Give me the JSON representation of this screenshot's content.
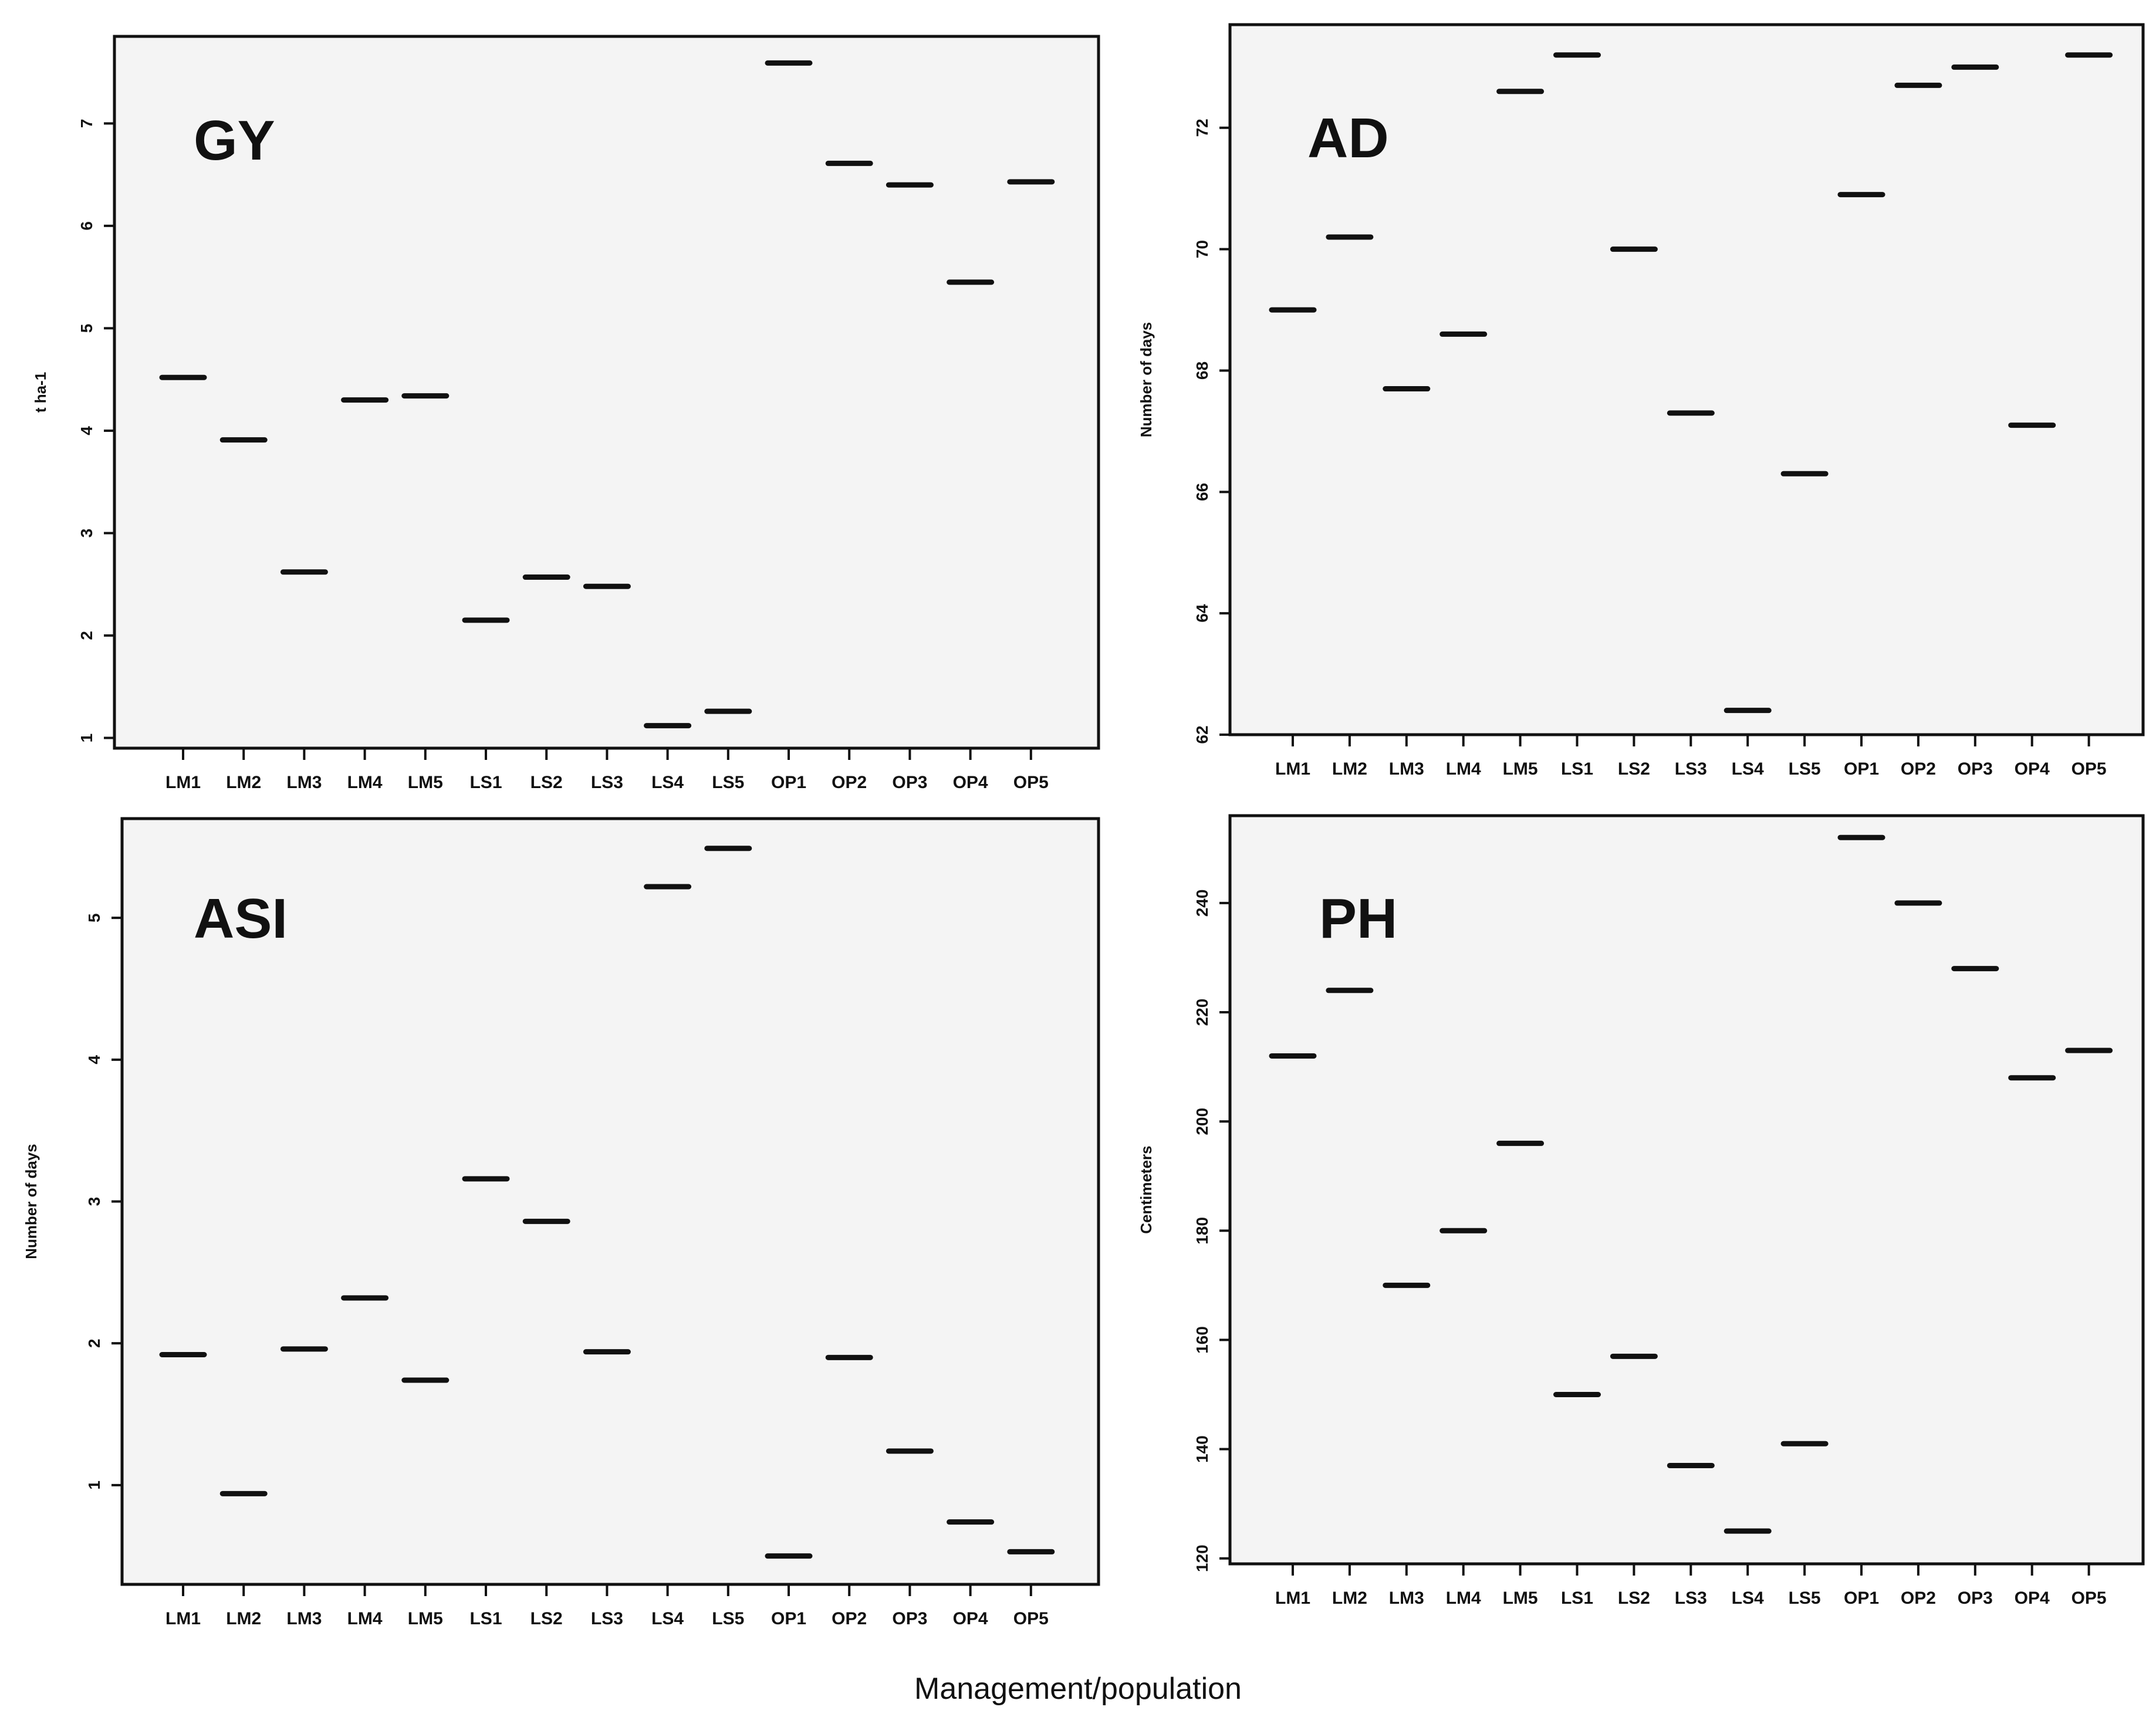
{
  "xlabel": "Management/population",
  "chart_data": [
    {
      "type": "scatter",
      "title": "GY",
      "ylabel": "t ha-1",
      "categories": [
        "LM1",
        "LM2",
        "LM3",
        "LM4",
        "LM5",
        "LS1",
        "LS2",
        "LS3",
        "LS4",
        "LS5",
        "OP1",
        "OP2",
        "OP3",
        "OP4",
        "OP5"
      ],
      "values": [
        4.52,
        3.91,
        2.62,
        4.3,
        4.34,
        2.15,
        2.57,
        2.48,
        1.12,
        1.26,
        7.59,
        6.61,
        6.4,
        5.45,
        6.43
      ],
      "yticks": [
        1,
        2,
        3,
        4,
        5,
        6,
        7
      ],
      "ytick_labels": [
        "1",
        "2",
        "3",
        "4",
        "5",
        "6",
        "7"
      ],
      "ylim": [
        0.9,
        7.85
      ],
      "grid": false
    },
    {
      "type": "scatter",
      "title": "AD",
      "ylabel": "Number of days",
      "categories": [
        "LM1",
        "LM2",
        "LM3",
        "LM4",
        "LM5",
        "LS1",
        "LS2",
        "LS3",
        "LS4",
        "LS5",
        "OP1",
        "OP2",
        "OP3",
        "OP4",
        "OP5"
      ],
      "values": [
        69.0,
        70.2,
        67.7,
        68.6,
        72.6,
        73.2,
        70.0,
        67.3,
        62.4,
        66.3,
        70.9,
        72.7,
        73.0,
        67.1,
        73.2
      ],
      "yticks": [
        62,
        64,
        66,
        68,
        70,
        72
      ],
      "ytick_labels": [
        "62",
        "64",
        "66",
        "68",
        "70",
        "72"
      ],
      "ylim": [
        62.0,
        73.7
      ],
      "grid": false
    },
    {
      "type": "scatter",
      "title": "ASI",
      "ylabel": "Number of days",
      "categories": [
        "LM1",
        "LM2",
        "LM3",
        "LM4",
        "LM5",
        "LS1",
        "LS2",
        "LS3",
        "LS4",
        "LS5",
        "OP1",
        "OP2",
        "OP3",
        "OP4",
        "OP5"
      ],
      "values": [
        1.92,
        0.94,
        1.96,
        2.32,
        1.74,
        3.16,
        2.86,
        1.94,
        5.22,
        5.49,
        0.5,
        1.9,
        1.24,
        0.74,
        0.53
      ],
      "yticks": [
        1,
        2,
        3,
        4,
        5
      ],
      "ytick_labels": [
        "1",
        "2",
        "3",
        "4",
        "5"
      ],
      "ylim": [
        0.3,
        5.7
      ],
      "grid": false
    },
    {
      "type": "scatter",
      "title": "PH",
      "ylabel": "Centimeters",
      "categories": [
        "LM1",
        "LM2",
        "LM3",
        "LM4",
        "LM5",
        "LS1",
        "LS2",
        "LS3",
        "LS4",
        "LS5",
        "OP1",
        "OP2",
        "OP3",
        "OP4",
        "OP5"
      ],
      "values": [
        212,
        224,
        170,
        180,
        196,
        150,
        157,
        137,
        125,
        141,
        252,
        240,
        228,
        208,
        213
      ],
      "yticks": [
        120,
        140,
        160,
        180,
        200,
        220,
        240
      ],
      "ytick_labels": [
        "120",
        "140",
        "160",
        "180",
        "200",
        "220",
        "240"
      ],
      "ylim": [
        119,
        256
      ],
      "grid": false
    }
  ]
}
